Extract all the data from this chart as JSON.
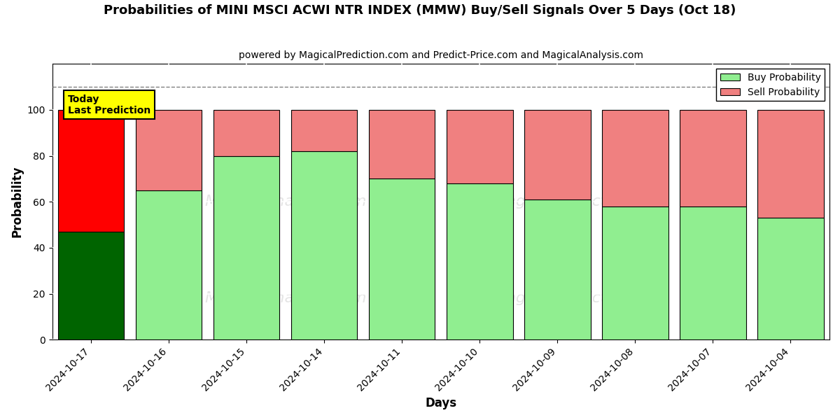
{
  "title": "Probabilities of MINI MSCI ACWI NTR INDEX (MMW) Buy/Sell Signals Over 5 Days (Oct 18)",
  "subtitle": "powered by MagicalPrediction.com and Predict-Price.com and MagicalAnalysis.com",
  "xlabel": "Days",
  "ylabel": "Probability",
  "dates": [
    "2024-10-17",
    "2024-10-16",
    "2024-10-15",
    "2024-10-14",
    "2024-10-11",
    "2024-10-10",
    "2024-10-09",
    "2024-10-08",
    "2024-10-07",
    "2024-10-04"
  ],
  "buy_values": [
    47,
    65,
    80,
    82,
    70,
    68,
    61,
    58,
    58,
    53
  ],
  "sell_values": [
    53,
    35,
    20,
    18,
    30,
    32,
    39,
    42,
    42,
    47
  ],
  "buy_colors": [
    "#006400",
    "#90EE90",
    "#90EE90",
    "#90EE90",
    "#90EE90",
    "#90EE90",
    "#90EE90",
    "#90EE90",
    "#90EE90",
    "#90EE90"
  ],
  "sell_colors": [
    "#FF0000",
    "#F08080",
    "#F08080",
    "#F08080",
    "#F08080",
    "#F08080",
    "#F08080",
    "#F08080",
    "#F08080",
    "#F08080"
  ],
  "ylim": [
    0,
    120
  ],
  "yticks": [
    0,
    20,
    40,
    60,
    80,
    100
  ],
  "dashed_line_y": 110,
  "legend_buy_color": "#90EE90",
  "legend_sell_color": "#F08080",
  "today_label_color": "#FFFF00",
  "background_color": "#ffffff",
  "bar_edge_color": "#000000",
  "bar_width": 0.85,
  "fig_width": 12.0,
  "fig_height": 6.0,
  "dpi": 100
}
